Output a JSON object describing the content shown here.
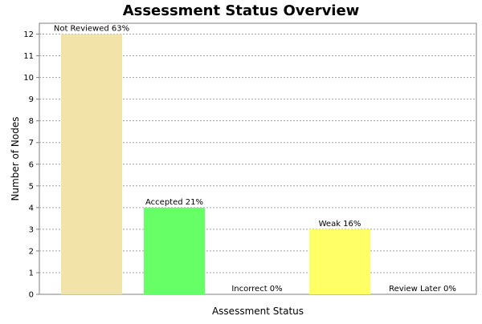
{
  "chart_data": {
    "type": "bar",
    "title": "Assessment Status Overview",
    "xlabel": "Assessment Status",
    "ylabel": "Number of Nodes",
    "ylim": [
      0,
      12.5
    ],
    "yticks": [
      "0",
      "1",
      "2",
      "3",
      "4",
      "5",
      "6",
      "7",
      "8",
      "9",
      "10",
      "11",
      "12"
    ],
    "grid": true,
    "legend": "none",
    "categories": [
      "Not Reviewed",
      "Accepted",
      "Incorrect",
      "Weak",
      "Review Later"
    ],
    "values": [
      12,
      4,
      0,
      3,
      0
    ],
    "data_labels": [
      "Not Reviewed 63%",
      "Accepted 21%",
      "Incorrect 0%",
      "Weak 16%",
      "Review Later 0%"
    ],
    "colors": [
      "#f2e3a8",
      "#66ff66",
      "#ff6666",
      "#ffff66",
      "#99ccff"
    ],
    "gridline_color": "#a0a0a0",
    "axis_color": "#7f7f7f"
  }
}
